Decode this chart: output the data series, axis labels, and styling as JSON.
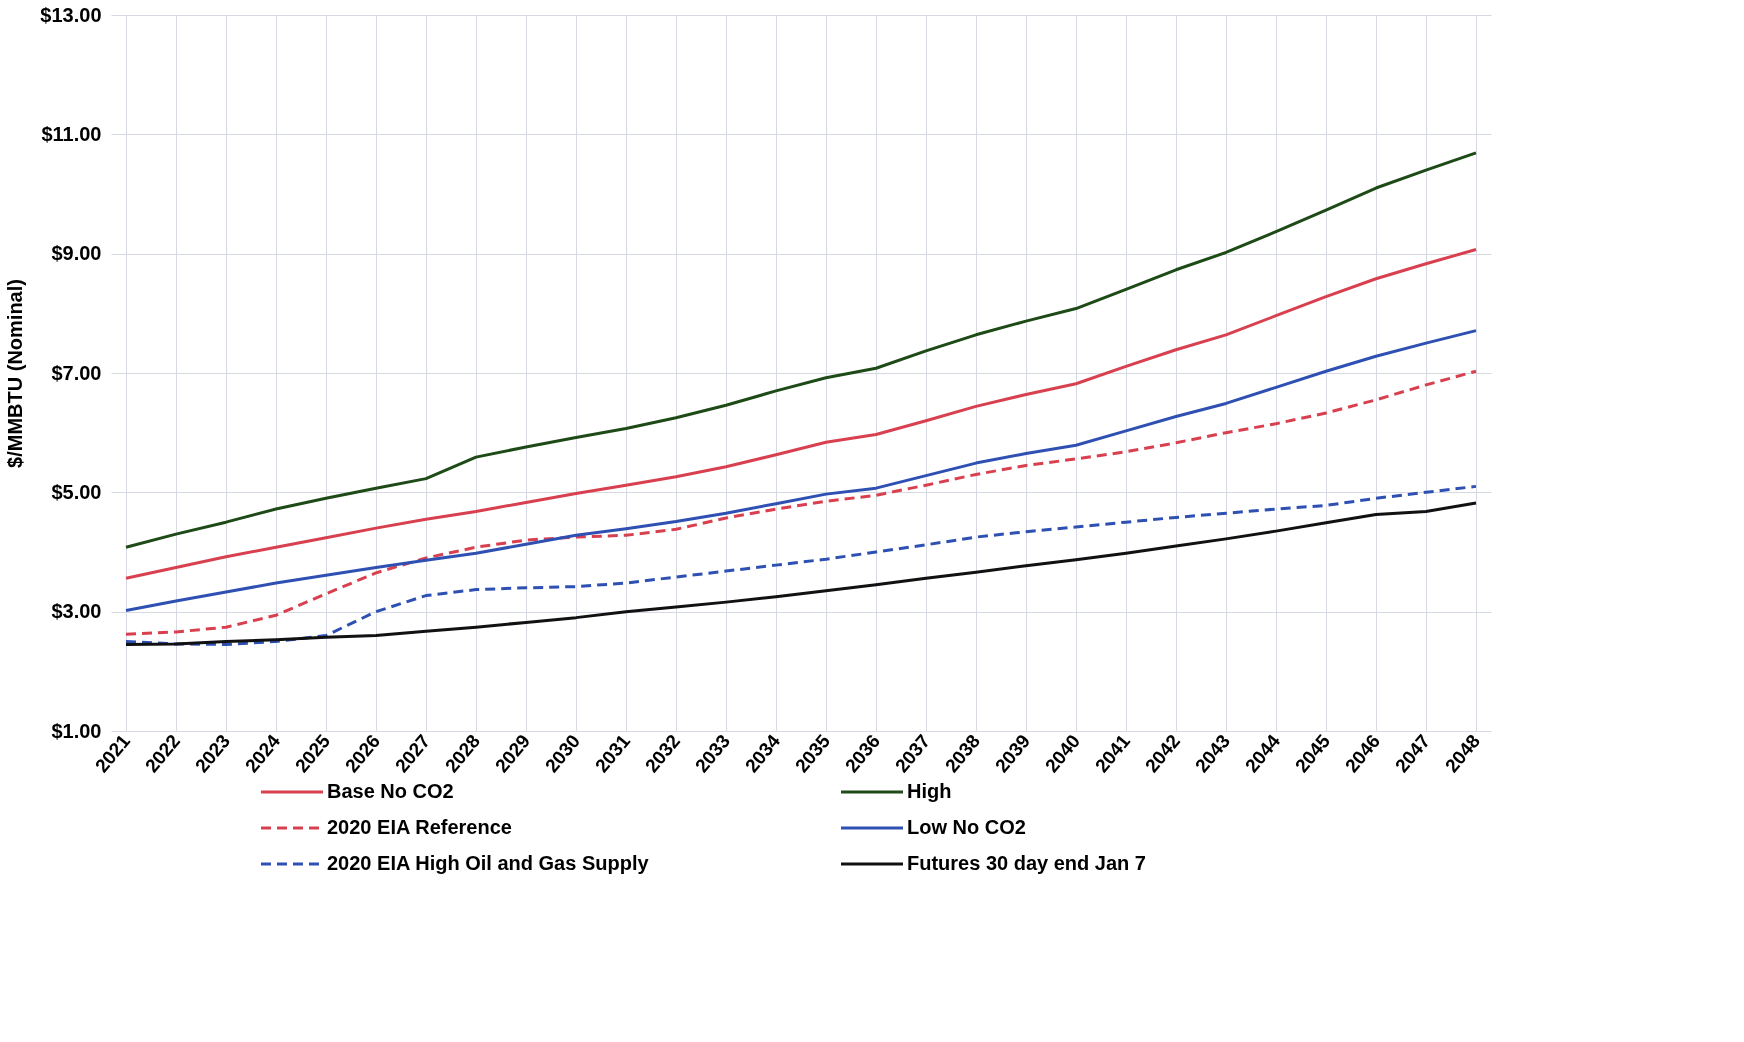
{
  "chart_data": {
    "type": "line",
    "ylabel": "$/MMBTU (Nominal)",
    "categories": [
      "2021",
      "2022",
      "2023",
      "2024",
      "2025",
      "2026",
      "2027",
      "2028",
      "2029",
      "2030",
      "2031",
      "2032",
      "2033",
      "2034",
      "2035",
      "2036",
      "2037",
      "2038",
      "2039",
      "2040",
      "2041",
      "2042",
      "2043",
      "2044",
      "2045",
      "2046",
      "2047",
      "2048"
    ],
    "ylim": [
      1,
      13
    ],
    "yticks": [
      {
        "value": 1,
        "label": "$1.00"
      },
      {
        "value": 3,
        "label": "$3.00"
      },
      {
        "value": 5,
        "label": "$5.00"
      },
      {
        "value": 7,
        "label": "$7.00"
      },
      {
        "value": 9,
        "label": "$9.00"
      },
      {
        "value": 11,
        "label": "$11.00"
      },
      {
        "value": 13,
        "label": "$13.00"
      }
    ],
    "grid": true,
    "legend": "bottom",
    "marker": "none",
    "series": [
      {
        "name": "Base No CO2",
        "color": "#d8404f",
        "line_style": "solid",
        "values": [
          3.56,
          3.74,
          3.92,
          4.08,
          4.24,
          4.4,
          4.55,
          4.68,
          4.83,
          4.98,
          5.12,
          5.26,
          5.43,
          5.63,
          5.84,
          5.97,
          6.2,
          6.44,
          6.64,
          6.82,
          7.11,
          7.39,
          7.64,
          7.96,
          8.28,
          8.58,
          8.83,
          9.07
        ]
      },
      {
        "name": "2020 EIA Reference",
        "color": "#d8404f",
        "line_style": "dashed",
        "values": [
          2.62,
          2.66,
          2.74,
          2.94,
          3.3,
          3.65,
          3.9,
          4.08,
          4.2,
          4.25,
          4.28,
          4.38,
          4.57,
          4.72,
          4.85,
          4.95,
          5.12,
          5.3,
          5.45,
          5.56,
          5.68,
          5.83,
          6.0,
          6.15,
          6.33,
          6.55,
          6.8,
          7.03
        ]
      },
      {
        "name": "2020 EIA High Oil and Gas Supply",
        "color": "#2f50b3",
        "line_style": "dashed",
        "values": [
          2.5,
          2.46,
          2.45,
          2.5,
          2.6,
          3.0,
          3.27,
          3.37,
          3.4,
          3.42,
          3.48,
          3.58,
          3.68,
          3.78,
          3.88,
          4.0,
          4.12,
          4.25,
          4.34,
          4.42,
          4.5,
          4.58,
          4.65,
          4.72,
          4.78,
          4.9,
          5.0,
          5.1
        ]
      },
      {
        "name": "High",
        "color": "#1d4a16",
        "line_style": "solid",
        "values": [
          4.08,
          4.3,
          4.5,
          4.72,
          4.9,
          5.07,
          5.23,
          5.59,
          5.76,
          5.92,
          6.07,
          6.25,
          6.46,
          6.7,
          6.92,
          7.08,
          7.37,
          7.64,
          7.87,
          8.08,
          8.4,
          8.73,
          9.02,
          9.37,
          9.73,
          10.1,
          10.4,
          10.69
        ]
      },
      {
        "name": "Low No CO2",
        "color": "#2f50b3",
        "line_style": "solid",
        "values": [
          3.02,
          3.18,
          3.33,
          3.48,
          3.61,
          3.74,
          3.86,
          3.98,
          4.13,
          4.28,
          4.39,
          4.51,
          4.65,
          4.81,
          4.97,
          5.07,
          5.28,
          5.49,
          5.65,
          5.79,
          6.03,
          6.27,
          6.49,
          6.76,
          7.03,
          7.28,
          7.5,
          7.71
        ]
      },
      {
        "name": "Futures 30 day end Jan 7",
        "color": "#111111",
        "line_style": "solid",
        "values": [
          2.45,
          2.46,
          2.5,
          2.53,
          2.57,
          2.6,
          2.67,
          2.74,
          2.82,
          2.9,
          3.0,
          3.08,
          3.16,
          3.25,
          3.35,
          3.45,
          3.56,
          3.66,
          3.77,
          3.87,
          3.98,
          4.1,
          4.22,
          4.35,
          4.49,
          4.63,
          4.68,
          4.82
        ]
      }
    ]
  }
}
